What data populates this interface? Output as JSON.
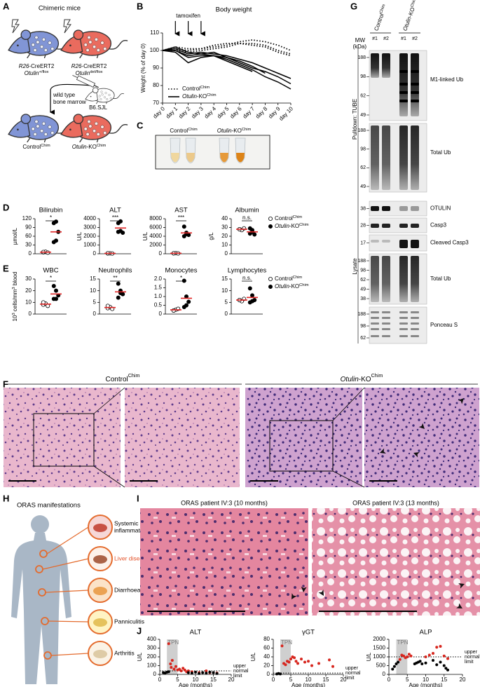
{
  "panels": {
    "A": {
      "letter": "A",
      "title": "Chimeric mice",
      "genotypes": [
        [
          [
            {
              "i": "R26"
            },
            "-CreERT2"
          ],
          [
            {
              "i": "Otulin"
            },
            {
              "sup": "+/flox"
            }
          ]
        ],
        [
          [
            {
              "i": "R26"
            },
            "-CreERT2"
          ],
          [
            {
              "i": "Otulin"
            },
            {
              "sup": "del/flox"
            }
          ]
        ]
      ],
      "transfer": [
        "wild type",
        "bone marrow"
      ],
      "recipient": "B6.SJL",
      "chimeras": [
        [
          "Control",
          {
            "sup": "Chim"
          }
        ],
        [
          {
            "i": "Otulin"
          },
          "-KO",
          {
            "sup": "Chim"
          }
        ]
      ]
    },
    "B": {
      "letter": "B"
    },
    "C": {
      "letter": "C",
      "labels": [
        [
          "Control",
          {
            "sup": "Chim"
          }
        ],
        [
          {
            "i": "Otulin"
          },
          "-KO",
          {
            "sup": "Chim"
          }
        ]
      ]
    },
    "D": {
      "letter": "D",
      "legend": [
        [
          "Control",
          {
            "sup": "Chim"
          }
        ],
        [
          {
            "i": "Otulin"
          },
          "-KO",
          {
            "sup": "Chim"
          }
        ]
      ]
    },
    "E": {
      "letter": "E",
      "legend": [
        [
          "Control",
          {
            "sup": "Chim"
          }
        ],
        [
          {
            "i": "Otulin"
          },
          "-KO",
          {
            "sup": "Chim"
          }
        ]
      ]
    },
    "F": {
      "letter": "F",
      "labels": [
        [
          "Control",
          {
            "sup": "Chim"
          }
        ],
        [
          {
            "i": "Otulin"
          },
          "-KO",
          {
            "sup": "Chim"
          }
        ]
      ]
    },
    "G": {
      "letter": "G",
      "groups": [
        [
          "Control",
          {
            "sup": "Chim"
          }
        ],
        [
          {
            "i": "Otulin"
          },
          "-KO",
          {
            "sup": "Chim"
          }
        ]
      ],
      "lanes": [
        "#1",
        "#2",
        "#1",
        "#2"
      ],
      "mw_title": [
        "MW",
        "(kDa)"
      ],
      "sections": [
        "Pulldown: TUBE",
        "Lysate"
      ],
      "blots": [
        {
          "label": "M1-linked Ub",
          "mw": [
            188,
            98,
            62,
            49
          ]
        },
        {
          "label": "Total Ub",
          "mw": [
            188,
            98,
            62,
            49
          ]
        },
        {
          "label": "OTULIN",
          "mw": [
            38
          ]
        },
        {
          "label": "Casp3",
          "mw": [
            28
          ]
        },
        {
          "label": "Cleaved Casp3",
          "mw": [
            17
          ]
        },
        {
          "label": "Total Ub",
          "mw": [
            188,
            98,
            62,
            49,
            38
          ]
        },
        {
          "label": "Ponceau S",
          "mw": [
            188,
            98,
            62
          ]
        }
      ]
    },
    "H": {
      "letter": "H",
      "title": "ORAS manifestations",
      "items": [
        [
          "Systemic",
          "inflammation"
        ],
        [
          "Liver disease?"
        ],
        [
          "Diarrhoea"
        ],
        [
          "Panniculitis"
        ],
        [
          "Arthritis"
        ]
      ]
    },
    "I": {
      "letter": "I",
      "captions": [
        "ORAS patient IV:3 (10 months)",
        "ORAS patient IV:3 (13 months)"
      ]
    },
    "J": {
      "letter": "J"
    }
  },
  "chart_data": [
    {
      "type": "line",
      "title": "Body weight",
      "ylabel": "Weight (% of day 0)",
      "annotation": "tamoxifen",
      "categories": [
        "day 0",
        "day 1",
        "day 2",
        "day 3",
        "day 4",
        "day 5",
        "day 6",
        "day 7",
        "day 8",
        "day 9",
        "day 10"
      ],
      "ylim": [
        70,
        110
      ],
      "yticks": [
        70,
        80,
        90,
        100,
        110
      ],
      "series": [
        {
          "dash": true,
          "values": [
            100,
            101,
            100,
            101,
            102,
            103,
            105,
            106,
            105,
            103,
            100
          ]
        },
        {
          "dash": true,
          "values": [
            100,
            100,
            99,
            100,
            101,
            102,
            104,
            104,
            103,
            100,
            98
          ]
        },
        {
          "dash": true,
          "values": [
            100,
            102,
            101,
            101,
            103,
            104,
            104,
            103,
            102,
            99,
            97
          ]
        },
        {
          "dash": false,
          "values": [
            100,
            100,
            96,
            97,
            97,
            96,
            94,
            91,
            87,
            null,
            null
          ]
        },
        {
          "dash": false,
          "values": [
            100,
            99,
            93,
            96,
            97,
            95,
            92,
            89,
            85,
            82,
            78
          ]
        },
        {
          "dash": false,
          "values": [
            100,
            101,
            98,
            99,
            98,
            97,
            95,
            93,
            90,
            87,
            84
          ]
        },
        {
          "dash": false,
          "values": [
            100,
            100,
            97,
            98,
            99,
            96,
            93,
            90,
            88,
            85,
            81
          ]
        },
        {
          "dash": false,
          "values": [
            100,
            102,
            99,
            98,
            97,
            94,
            91,
            88,
            null,
            null,
            null
          ]
        }
      ],
      "legend": [
        {
          "label": [
            "Control",
            {
              "sup": "Chim"
            }
          ],
          "dash": true
        },
        {
          "label": [
            {
              "i": "Otulin"
            },
            "-KO",
            {
              "sup": "Chim"
            }
          ],
          "dash": false
        }
      ]
    },
    {
      "type": "dot",
      "title": "Bilirubin",
      "ylabel": "µmol/L",
      "ylim": [
        0,
        120
      ],
      "yticks": [
        0,
        30,
        60,
        90,
        120
      ],
      "series": [
        {
          "fill": "#ffffff",
          "values": [
            5,
            7,
            4,
            6
          ]
        },
        {
          "fill": "#000000",
          "values": [
            105,
            110,
            75,
            40,
            45
          ]
        }
      ],
      "means": [
        5.5,
        75
      ],
      "mean_color": "#e02424",
      "significance": "*"
    },
    {
      "type": "dot",
      "title": "ALT",
      "ylabel": "U/L",
      "ylim": [
        0,
        4000
      ],
      "yticks": [
        0,
        1000,
        2000,
        3000,
        4000
      ],
      "series": [
        {
          "fill": "#ffffff",
          "values": [
            40,
            50,
            30,
            60
          ]
        },
        {
          "fill": "#000000",
          "values": [
            3500,
            3700,
            2400,
            2500,
            2600
          ]
        }
      ],
      "means": [
        45,
        2940
      ],
      "mean_color": "#e02424",
      "significance": "***"
    },
    {
      "type": "dot",
      "title": "AST",
      "ylabel": "U/L",
      "ylim": [
        0,
        8000
      ],
      "yticks": [
        0,
        2000,
        4000,
        6000,
        8000
      ],
      "series": [
        {
          "fill": "#ffffff",
          "values": [
            100,
            150,
            80,
            120
          ]
        },
        {
          "fill": "#000000",
          "values": [
            6200,
            4500,
            4300,
            4000,
            4800
          ]
        }
      ],
      "means": [
        112,
        4760
      ],
      "mean_color": "#e02424",
      "significance": "***"
    },
    {
      "type": "dot",
      "title": "Albumin",
      "ylabel": "g/L",
      "ylim": [
        0,
        40
      ],
      "yticks": [
        0,
        10,
        20,
        30,
        40
      ],
      "series": [
        {
          "fill": "#ffffff",
          "values": [
            28,
            27,
            29,
            28
          ]
        },
        {
          "fill": "#000000",
          "values": [
            29,
            27,
            22,
            23,
            25
          ]
        }
      ],
      "means": [
        28,
        25
      ],
      "mean_color": "#e02424",
      "significance": "n.s."
    },
    {
      "type": "dot",
      "title": "WBC",
      "ylabel": [
        "10",
        {
          "sup": "3"
        },
        " cells/mm",
        {
          "sup": "3"
        },
        " blood"
      ],
      "ylim": [
        0,
        30
      ],
      "yticks": [
        0,
        10,
        20,
        30
      ],
      "series": [
        {
          "fill": "#ffffff",
          "values": [
            8,
            9,
            7,
            10
          ]
        },
        {
          "fill": "#000000",
          "values": [
            24,
            20,
            16,
            13,
            13
          ]
        }
      ],
      "means": [
        8.5,
        17.2
      ],
      "mean_color": "#e02424",
      "significance": "*"
    },
    {
      "type": "dot",
      "title": "Neutrophils",
      "ylim": [
        0,
        15
      ],
      "yticks": [
        0,
        5,
        10,
        15
      ],
      "series": [
        {
          "fill": "#ffffff",
          "values": [
            2.5,
            3,
            2.2,
            3.5
          ]
        },
        {
          "fill": "#000000",
          "values": [
            13,
            10,
            8.5,
            7,
            9
          ]
        }
      ],
      "means": [
        2.8,
        9.5
      ],
      "mean_color": "#e02424",
      "significance": "**"
    },
    {
      "type": "dot",
      "title": "Monocytes",
      "ylim": [
        0,
        2
      ],
      "yticks": [
        0,
        0.5,
        {
          "value": 1,
          "label": "1.0"
        },
        1.5,
        {
          "value": 2,
          "label": "2.0"
        }
      ],
      "series": [
        {
          "fill": "#ffffff",
          "values": [
            0.2,
            0.25,
            0.3,
            0.2
          ]
        },
        {
          "fill": "#000000",
          "values": [
            1.9,
            1.0,
            0.7,
            0.4,
            0.5
          ]
        }
      ],
      "means": [
        0.24,
        0.9
      ],
      "mean_color": "#e02424",
      "significance": "*"
    },
    {
      "type": "dot",
      "title": "Lymphocytes",
      "ylim": [
        0,
        15
      ],
      "yticks": [
        0,
        5,
        10,
        15
      ],
      "series": [
        {
          "fill": "#ffffff",
          "values": [
            6,
            5.5,
            6.5,
            6
          ]
        },
        {
          "fill": "#000000",
          "values": [
            11,
            8,
            6,
            5,
            5.5
          ]
        }
      ],
      "means": [
        6,
        7.1
      ],
      "mean_color": "#e02424",
      "significance": "n.s."
    },
    {
      "type": "scatter",
      "title": "ALT",
      "ylabel": "U/L",
      "xlabel": "Age (months)",
      "xlim": [
        0,
        20
      ],
      "xticks": [
        0,
        5,
        10,
        15,
        20
      ],
      "ylim": [
        0,
        400
      ],
      "yticks": [
        0,
        100,
        200,
        300,
        400
      ],
      "shade": [
        2,
        5
      ],
      "shade_label": "TPN",
      "limit": 40,
      "limit_label": [
        "upper",
        "normal",
        "limit"
      ],
      "series": [
        {
          "color": "#d7261e",
          "x": [
            2.5,
            3,
            3.2,
            3.5,
            4,
            4.5,
            5,
            5.5,
            6,
            6.5,
            7,
            7.5,
            8,
            9,
            11,
            13,
            14,
            16
          ],
          "values": [
            350,
            120,
            80,
            160,
            60,
            90,
            50,
            60,
            40,
            70,
            50,
            30,
            40,
            30,
            20,
            40,
            20,
            15
          ]
        },
        {
          "color": "#000000",
          "x": [
            1,
            1.5,
            2,
            2.5,
            8,
            9,
            10,
            11,
            12,
            13,
            14,
            15,
            16
          ],
          "values": [
            20,
            15,
            25,
            30,
            20,
            15,
            25,
            10,
            20,
            15,
            25,
            20,
            10
          ]
        }
      ]
    },
    {
      "type": "scatter",
      "title": "γGT",
      "ylabel": "U/L",
      "xlabel": "Age (months)",
      "xlim": [
        0,
        20
      ],
      "xticks": [
        0,
        5,
        10,
        15,
        20
      ],
      "ylim": [
        0,
        80
      ],
      "yticks": [
        0,
        20,
        40,
        60,
        80
      ],
      "shade": [
        2,
        5
      ],
      "shade_label": "TPN",
      "limit": 3,
      "limit_label": [
        "upper",
        "normal",
        "limit"
      ],
      "series": [
        {
          "color": "#d7261e",
          "x": [
            2.5,
            3,
            3.5,
            4,
            4.5,
            5,
            5.5,
            6,
            6.5,
            7,
            8,
            9,
            10,
            11,
            13,
            16,
            17
          ],
          "values": [
            65,
            25,
            22,
            30,
            28,
            35,
            40,
            38,
            30,
            25,
            35,
            28,
            30,
            20,
            25,
            33,
            18
          ]
        },
        {
          "color": "#000000",
          "x": [
            1,
            1.5,
            2
          ],
          "values": [
            1,
            2,
            1
          ]
        }
      ]
    },
    {
      "type": "scatter",
      "title": "ALP",
      "ylabel": "U/L",
      "xlabel": "Age (months)",
      "xlim": [
        0,
        20
      ],
      "xticks": [
        0,
        5,
        10,
        15,
        20
      ],
      "ylim": [
        0,
        2000
      ],
      "yticks": [
        0,
        500,
        1000,
        1500,
        2000
      ],
      "shade": [
        2,
        5
      ],
      "shade_label": "TPN",
      "limit": 1000,
      "limit_label": [
        "upper",
        "normal",
        "limit"
      ],
      "series": [
        {
          "color": "#d7261e",
          "x": [
            3,
            3.5,
            4,
            4.5,
            5,
            5.5,
            6,
            10,
            11,
            12,
            13,
            14,
            15,
            16
          ],
          "values": [
            850,
            1100,
            1050,
            950,
            1000,
            1150,
            1050,
            1000,
            1100,
            1200,
            1550,
            1600,
            1050,
            900
          ]
        },
        {
          "color": "#000000",
          "x": [
            1,
            1.5,
            2,
            2.5,
            7,
            7.5,
            8,
            8.5,
            9,
            10,
            12,
            13,
            14,
            15,
            15.5,
            16
          ],
          "values": [
            300,
            450,
            600,
            700,
            600,
            650,
            700,
            750,
            600,
            650,
            800,
            550,
            700,
            500,
            350,
            250
          ]
        }
      ]
    }
  ]
}
